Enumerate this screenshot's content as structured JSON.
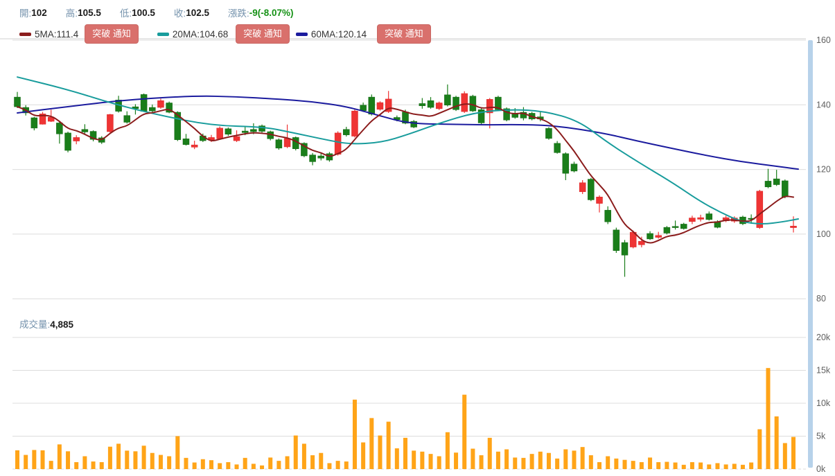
{
  "header": {
    "open_label": "開:",
    "open": "102",
    "high_label": "高:",
    "high": "105.5",
    "low_label": "低:",
    "low": "100.5",
    "close_label": "收:",
    "close": "102.5",
    "change_label": "漲跌:",
    "change": "-9(-8.07%)"
  },
  "ma_bar": {
    "ma5_label": "5MA:111.4",
    "ma20_label": "20MA:104.68",
    "ma60_label": "60MA:120.14",
    "alert_button": "突破 通知"
  },
  "volume_header": {
    "label": "成交量:",
    "value": "4,885"
  },
  "colors": {
    "up": "#ef3434",
    "up_stroke": "#da2424",
    "down": "#1a7e1a",
    "down_stroke": "#146714",
    "ma5": "#8b1c1c",
    "ma20": "#189c9c",
    "ma60": "#1b1b9e",
    "volume": "#ffa418",
    "grid": "#dcdcdc",
    "axis_text": "#606060",
    "label_blue": "#7492ac",
    "change_green": "#169216",
    "button_bg": "#d9706c",
    "scroll_track": "#b7d2ea"
  },
  "chart_data": {
    "type": "candlestick+volume",
    "title": "",
    "legend": [
      "5MA:111.4",
      "20MA:104.68",
      "60MA:120.14"
    ],
    "price_axis": {
      "ticks": [
        160,
        140,
        120,
        100,
        80
      ],
      "labels": [
        "160",
        "140",
        "120",
        "100",
        "80"
      ],
      "range": [
        80,
        160
      ]
    },
    "volume_axis": {
      "ticks": [
        20000,
        15000,
        10000,
        5000,
        0
      ],
      "labels": [
        "20k",
        "15k",
        "10k",
        "5k",
        "0k"
      ],
      "range": [
        0,
        20000
      ]
    },
    "last_volume": 4885,
    "candles": [
      [
        142.4,
        144.0,
        139.0,
        139.4
      ],
      [
        139.2,
        139.9,
        136.7,
        137.5
      ],
      [
        136.0,
        136.3,
        132.1,
        132.8
      ],
      [
        134.0,
        137.8,
        133.9,
        137.2
      ],
      [
        134.9,
        138.5,
        134.7,
        136.2
      ],
      [
        134.4,
        134.7,
        128.0,
        131.0
      ],
      [
        131.3,
        131.7,
        125.3,
        125.9
      ],
      [
        128.8,
        130.6,
        127.8,
        129.9
      ],
      [
        132.4,
        134.0,
        130.8,
        131.6
      ],
      [
        131.8,
        132.1,
        128.7,
        129.3
      ],
      [
        129.8,
        130.3,
        127.9,
        128.4
      ],
      [
        131.7,
        137.2,
        131.4,
        137.0
      ],
      [
        141.5,
        142.8,
        137.6,
        138.0
      ],
      [
        136.7,
        138.0,
        134.2,
        134.6
      ],
      [
        139.4,
        140.2,
        137.0,
        138.8
      ],
      [
        143.2,
        143.5,
        137.8,
        138.0
      ],
      [
        139.2,
        140.1,
        137.7,
        138.1
      ],
      [
        139.2,
        141.9,
        138.8,
        141.3
      ],
      [
        140.6,
        141.0,
        137.4,
        137.7
      ],
      [
        137.7,
        138.0,
        128.8,
        129.2
      ],
      [
        129.5,
        131.0,
        127.4,
        127.7
      ],
      [
        126.9,
        128.9,
        126.3,
        127.6
      ],
      [
        130.4,
        131.1,
        128.5,
        128.9
      ],
      [
        129.2,
        130.7,
        128.5,
        129.9
      ],
      [
        129.5,
        133.3,
        129.2,
        132.8
      ],
      [
        132.6,
        133.0,
        130.4,
        130.9
      ],
      [
        128.9,
        132.1,
        128.5,
        130.2
      ],
      [
        131.9,
        133.2,
        130.6,
        131.4
      ],
      [
        132.4,
        134.3,
        130.9,
        131.7
      ],
      [
        133.5,
        133.9,
        131.4,
        131.8
      ],
      [
        131.7,
        132.0,
        129.0,
        129.5
      ],
      [
        129.2,
        129.6,
        126.1,
        126.6
      ],
      [
        127.0,
        133.9,
        126.6,
        129.6
      ],
      [
        129.9,
        130.2,
        125.9,
        126.4
      ],
      [
        128.1,
        128.4,
        123.8,
        124.2
      ],
      [
        124.5,
        125.1,
        121.3,
        122.4
      ],
      [
        124.2,
        125.0,
        122.8,
        123.5
      ],
      [
        124.9,
        125.4,
        122.4,
        122.9
      ],
      [
        124.7,
        131.8,
        124.3,
        131.3
      ],
      [
        132.4,
        133.2,
        130.2,
        130.7
      ],
      [
        130.3,
        138.6,
        129.9,
        138.1
      ],
      [
        139.9,
        140.7,
        137.8,
        138.2
      ],
      [
        142.4,
        143.2,
        136.7,
        137.1
      ],
      [
        138.6,
        141.1,
        138.2,
        140.7
      ],
      [
        137.9,
        144.3,
        137.5,
        141.8
      ],
      [
        136.1,
        136.7,
        134.9,
        135.4
      ],
      [
        137.8,
        138.5,
        134.0,
        134.3
      ],
      [
        134.9,
        135.3,
        132.8,
        133.1
      ],
      [
        140.4,
        142.1,
        138.8,
        139.7
      ],
      [
        141.3,
        142.4,
        138.8,
        139.2
      ],
      [
        138.8,
        141.0,
        138.4,
        140.6
      ],
      [
        143.1,
        146.3,
        139.5,
        139.9
      ],
      [
        142.4,
        142.8,
        138.1,
        138.5
      ],
      [
        137.9,
        144.2,
        137.5,
        143.5
      ],
      [
        142.7,
        143.1,
        137.8,
        138.1
      ],
      [
        138.5,
        138.9,
        134.0,
        134.4
      ],
      [
        137.5,
        142.1,
        132.7,
        141.7
      ],
      [
        142.4,
        142.8,
        138.1,
        138.5
      ],
      [
        138.8,
        139.2,
        134.9,
        135.3
      ],
      [
        137.4,
        139.0,
        135.7,
        136.1
      ],
      [
        137.7,
        139.3,
        135.2,
        135.9
      ],
      [
        137.4,
        137.8,
        135.2,
        135.6
      ],
      [
        136.3,
        138.1,
        134.9,
        135.6
      ],
      [
        132.7,
        133.1,
        129.2,
        129.6
      ],
      [
        128.1,
        128.8,
        124.9,
        125.2
      ],
      [
        124.9,
        125.3,
        116.7,
        118.8
      ],
      [
        121.7,
        122.4,
        119.1,
        119.5
      ],
      [
        113.1,
        116.7,
        112.4,
        115.9
      ],
      [
        117.0,
        117.4,
        110.2,
        110.6
      ],
      [
        109.5,
        112.0,
        106.7,
        111.5
      ],
      [
        107.4,
        108.6,
        103.1,
        103.8
      ],
      [
        101.3,
        102.0,
        94.2,
        94.9
      ],
      [
        97.4,
        98.2,
        86.8,
        93.5
      ],
      [
        96.0,
        101.1,
        95.6,
        100.6
      ],
      [
        96.7,
        99.2,
        95.9,
        97.8
      ],
      [
        100.2,
        100.9,
        98.2,
        98.5
      ],
      [
        99.0,
        100.7,
        98.6,
        99.6
      ],
      [
        102.1,
        102.5,
        99.9,
        100.3
      ],
      [
        102.4,
        104.2,
        101.4,
        102.0
      ],
      [
        103.1,
        103.5,
        101.4,
        101.7
      ],
      [
        103.9,
        105.7,
        103.1,
        105.0
      ],
      [
        104.6,
        106.0,
        103.9,
        105.1
      ],
      [
        106.3,
        107.0,
        104.2,
        104.5
      ],
      [
        103.9,
        104.3,
        101.8,
        102.1
      ],
      [
        104.1,
        105.7,
        103.7,
        105.1
      ],
      [
        104.0,
        105.5,
        103.5,
        105.0
      ],
      [
        105.3,
        105.7,
        102.8,
        103.2
      ],
      [
        104.9,
        106.1,
        103.2,
        104.6
      ],
      [
        102.0,
        113.7,
        101.6,
        113.3
      ],
      [
        116.4,
        120.2,
        114.2,
        114.6
      ],
      [
        117.1,
        119.9,
        114.9,
        115.3
      ],
      [
        116.5,
        116.9,
        111.1,
        111.5
      ],
      [
        102.0,
        105.5,
        100.5,
        102.5
      ]
    ],
    "volumes": [
      2850,
      2150,
      2900,
      2850,
      1250,
      3750,
      2700,
      1050,
      1950,
      1150,
      1050,
      3400,
      3850,
      2800,
      2700,
      3550,
      2450,
      2150,
      1950,
      5000,
      1700,
      1000,
      1500,
      1350,
      900,
      1050,
      700,
      1700,
      800,
      550,
      1750,
      1250,
      1950,
      5100,
      3850,
      2100,
      2450,
      900,
      1250,
      1150,
      10550,
      4050,
      7750,
      5100,
      7200,
      3150,
      4750,
      2800,
      2650,
      2300,
      1950,
      5600,
      2500,
      11300,
      3100,
      2100,
      4750,
      2650,
      3000,
      1750,
      1700,
      2300,
      2650,
      2450,
      1600,
      3000,
      2800,
      3350,
      2100,
      1050,
      1950,
      1600,
      1400,
      1250,
      1050,
      1750,
      1050,
      1100,
      1000,
      650,
      1050,
      1000,
      700,
      900,
      700,
      800,
      650,
      1000,
      6050,
      15350,
      8000,
      3950,
      4885
    ],
    "ma20_points": [
      [
        25,
        148.6
      ],
      [
        100,
        144.6
      ],
      [
        165,
        140.2
      ],
      [
        230,
        136.8
      ],
      [
        305,
        133.6
      ],
      [
        380,
        133.2
      ],
      [
        420,
        131.5
      ],
      [
        470,
        129.2
      ],
      [
        505,
        127.8
      ],
      [
        550,
        128.3
      ],
      [
        590,
        130.9
      ],
      [
        635,
        134.4
      ],
      [
        685,
        137.6
      ],
      [
        735,
        138.6
      ],
      [
        785,
        138.1
      ],
      [
        835,
        135.1
      ],
      [
        875,
        128.6
      ],
      [
        920,
        122.4
      ],
      [
        970,
        116.0
      ],
      [
        1010,
        110.2
      ],
      [
        1040,
        106.7
      ],
      [
        1070,
        103.8
      ],
      [
        1100,
        103.0
      ],
      [
        1130,
        103.8
      ],
      [
        1152,
        104.7
      ]
    ],
    "ma60_points": [
      [
        25,
        137.5
      ],
      [
        100,
        139.5
      ],
      [
        180,
        141.5
      ],
      [
        280,
        142.8
      ],
      [
        340,
        142.5
      ],
      [
        400,
        141.8
      ],
      [
        450,
        141.0
      ],
      [
        500,
        139.5
      ],
      [
        545,
        136.8
      ],
      [
        590,
        134.2
      ],
      [
        650,
        134.0
      ],
      [
        700,
        133.8
      ],
      [
        750,
        133.9
      ],
      [
        800,
        133.6
      ],
      [
        870,
        131.3
      ],
      [
        920,
        128.8
      ],
      [
        970,
        126.5
      ],
      [
        1020,
        124.3
      ],
      [
        1070,
        122.4
      ],
      [
        1120,
        121.0
      ],
      [
        1152,
        120.1
      ]
    ]
  }
}
